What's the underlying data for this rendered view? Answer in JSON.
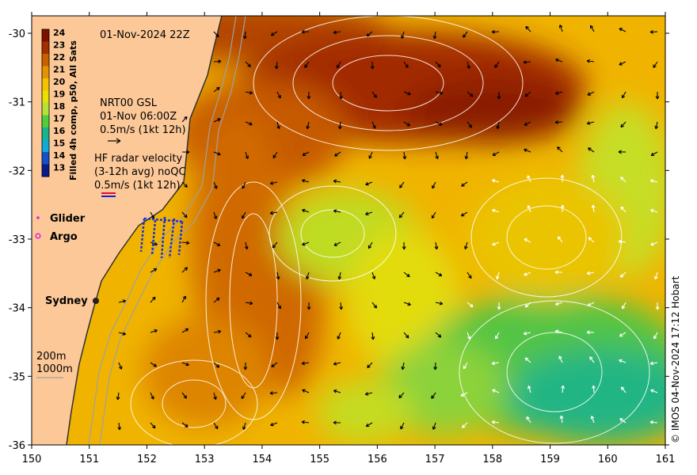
{
  "title": "01-Nov-2024 22Z",
  "colorbar": {
    "label": "Filled 4h comp, p50, All Sats",
    "ticks": [
      "24",
      "23",
      "22",
      "21",
      "20",
      "19",
      "18",
      "17",
      "16",
      "15",
      "14",
      "13"
    ],
    "colors": [
      "#7a1200",
      "#a12e00",
      "#c86000",
      "#e39400",
      "#f3c300",
      "#e7e000",
      "#b4e23a",
      "#4fcf3c",
      "#1ab48c",
      "#12a9d6",
      "#1650c8",
      "#0b1b8a"
    ]
  },
  "legend": {
    "gsl": {
      "name": "NRT00 GSL",
      "date": "01-Nov 06:00Z",
      "scale": "0.5m/s (1kt 12h)"
    },
    "hf": {
      "line1": "HF radar velocity",
      "line2": "(3-12h avg) noQC",
      "scale": "0.5m/s (1kt 12h)"
    },
    "glider": "Glider",
    "argo": "Argo",
    "city": "Sydney",
    "iso200": "200m",
    "iso1000": "1000m"
  },
  "axes": {
    "x_ticks": [
      "150",
      "151",
      "152",
      "153",
      "154",
      "155",
      "156",
      "157",
      "158",
      "159",
      "160",
      "161"
    ],
    "y_ticks": [
      "-30",
      "-31",
      "-32",
      "-33",
      "-34",
      "-35",
      "-36"
    ]
  },
  "credit": "© IMOS 04-Nov-2024 17:12 Hobart",
  "colors": {
    "land": "#fcc898",
    "coast": "#303030",
    "contour": "#ffffff",
    "bathy": "#a0a0a0"
  }
}
